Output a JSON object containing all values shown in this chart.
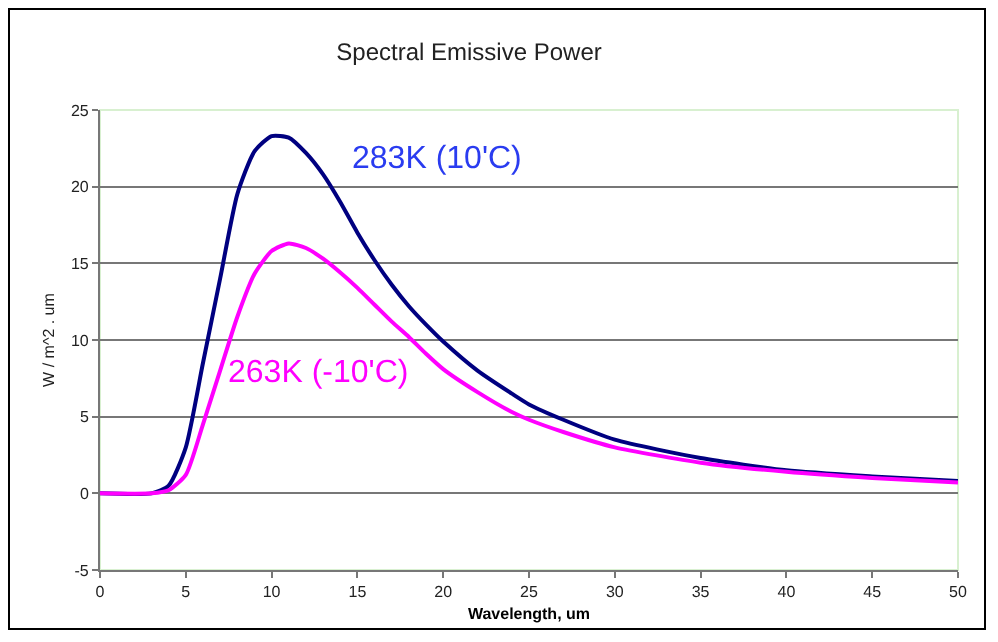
{
  "chart_data": {
    "type": "line",
    "title": "Spectral Emissive Power",
    "xlabel": "Wavelength, um",
    "ylabel": "W / m^2 . um",
    "x": [
      0,
      3,
      4,
      5,
      6,
      7,
      8,
      9,
      10,
      11,
      12,
      13,
      14,
      15,
      16,
      17,
      18,
      19,
      20,
      22,
      24,
      25,
      27,
      30,
      35,
      40,
      45,
      50
    ],
    "series": [
      {
        "name": "283K (10'C)",
        "color": "#000080",
        "values": [
          0,
          0,
          0.5,
          3,
          8.5,
          14,
          19.5,
          22.3,
          23.3,
          23.2,
          22.2,
          20.8,
          19,
          17,
          15.2,
          13.6,
          12.2,
          11,
          9.9,
          8,
          6.5,
          5.8,
          4.8,
          3.5,
          2.3,
          1.5,
          1.1,
          0.8
        ]
      },
      {
        "name": "263K (-10'C)",
        "color": "#ff00ff",
        "values": [
          0,
          0,
          0.2,
          1.2,
          4.5,
          8,
          11.5,
          14.3,
          15.8,
          16.3,
          16,
          15.3,
          14.4,
          13.4,
          12.3,
          11.2,
          10.2,
          9.1,
          8.1,
          6.6,
          5.3,
          4.8,
          4,
          3,
          2,
          1.4,
          1,
          0.7
        ]
      }
    ],
    "xlim": [
      0,
      50
    ],
    "xticks": [
      0,
      5,
      10,
      15,
      20,
      25,
      30,
      35,
      40,
      45,
      50
    ],
    "ylim": [
      -5,
      25
    ],
    "yticks": [
      -5,
      0,
      5,
      10,
      15,
      20,
      25
    ],
    "grid": "y",
    "legend": false,
    "marker": "none",
    "line_style": "solid"
  }
}
